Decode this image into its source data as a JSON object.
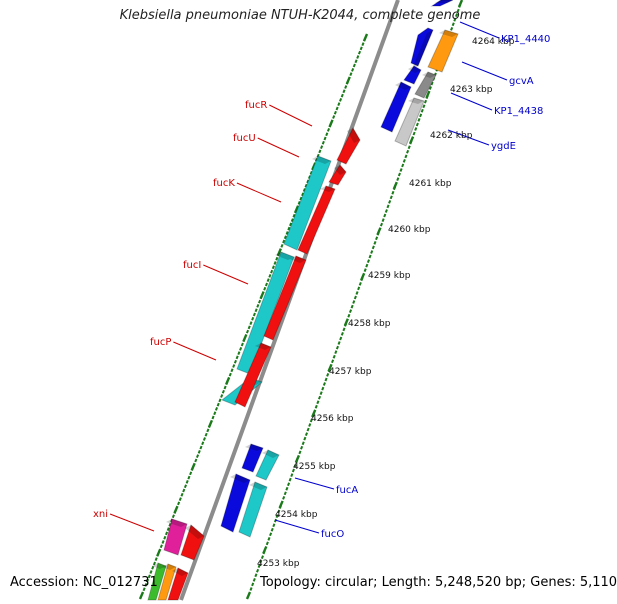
{
  "title": "Klebsiella pneumoniae NTUH-K2044, complete genome",
  "accession_label": "Accession: NC_012731",
  "topology_label": "Topology: circular; Length: 5,248,520 bp; Genes: 5,110",
  "colors": {
    "backbone": "#8c8c8c",
    "tick": "#1a7a1a",
    "label_blue": "#0000cc",
    "label_red": "#cc0000",
    "blue_gene": "#0a0adc",
    "red_gene": "#f01010",
    "cyan_gene": "#1ec8c8",
    "orange_gene": "#ff9a10",
    "grey_gene": "#8a8a8a",
    "light_grey_gene": "#c8c8c8",
    "magenta_gene": "#e0209a",
    "green_gene": "#3cbc2c"
  },
  "scale_labels": [
    {
      "text": "4264 kbp"
    },
    {
      "text": "4263 kbp"
    },
    {
      "text": "4262 kbp"
    },
    {
      "text": "4261 kbp"
    },
    {
      "text": "4260 kbp"
    },
    {
      "text": "4259 kbp"
    },
    {
      "text": "4258 kbp"
    },
    {
      "text": "4257 kbp"
    },
    {
      "text": "4256 kbp"
    },
    {
      "text": "4255 kbp"
    },
    {
      "text": "4254 kbp"
    },
    {
      "text": "4253 kbp"
    }
  ],
  "gene_labels_right": [
    {
      "text": "KP1_4440"
    },
    {
      "text": "gcvA"
    },
    {
      "text": "KP1_4438"
    },
    {
      "text": "ygdE"
    },
    {
      "text": "fucA"
    },
    {
      "text": "fucO"
    }
  ],
  "gene_labels_left": [
    {
      "text": "fucR"
    },
    {
      "text": "fucU"
    },
    {
      "text": "fucK"
    },
    {
      "text": "fucI"
    },
    {
      "text": "fucP"
    },
    {
      "text": "xni"
    }
  ]
}
